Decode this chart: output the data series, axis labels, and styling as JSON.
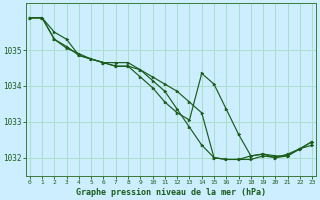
{
  "title": "Graphe pression niveau de la mer (hPa)",
  "hours": [
    0,
    1,
    2,
    3,
    4,
    5,
    6,
    7,
    8,
    9,
    10,
    11,
    12,
    13,
    14,
    15,
    16,
    17,
    18,
    19,
    20,
    21,
    22,
    23
  ],
  "ylim": [
    1031.5,
    1036.3
  ],
  "yticks": [
    1032,
    1033,
    1034,
    1035
  ],
  "xlim": [
    -0.3,
    23.3
  ],
  "background_color": "#cceeff",
  "grid_color": "#aaddcc",
  "line_color": "#1a5c1a",
  "spine_color": "#3a7a3a",
  "tick_color": "#1a5c1a",
  "label_color": "#1a5c1a",
  "lines": [
    [
      1035.9,
      1035.9,
      1035.5,
      1035.3,
      1034.85,
      1034.75,
      1034.65,
      1034.65,
      1034.65,
      1034.45,
      1034.15,
      1033.85,
      1033.35,
      1032.85,
      1032.35,
      1032.0,
      1031.95,
      1031.95,
      1031.95,
      1032.05,
      1032.0,
      1032.05,
      1032.25,
      1032.35
    ],
    [
      1035.9,
      1035.9,
      1035.3,
      1035.1,
      1034.85,
      1034.75,
      1034.65,
      1034.55,
      1034.55,
      1034.25,
      1033.95,
      1033.55,
      1033.25,
      1033.05,
      1034.35,
      1034.05,
      1033.35,
      1032.65,
      1032.05,
      1032.1,
      1032.05,
      1032.05,
      1032.25,
      1032.45
    ],
    [
      1035.9,
      1035.9,
      1035.3,
      1035.05,
      1034.9,
      1034.75,
      1034.65,
      1034.55,
      1034.55,
      1034.45,
      1034.25,
      1034.05,
      1033.85,
      1033.55,
      1033.25,
      1032.0,
      1031.95,
      1031.95,
      1032.05,
      1032.1,
      1032.0,
      1032.1,
      1032.25,
      1032.45
    ]
  ]
}
